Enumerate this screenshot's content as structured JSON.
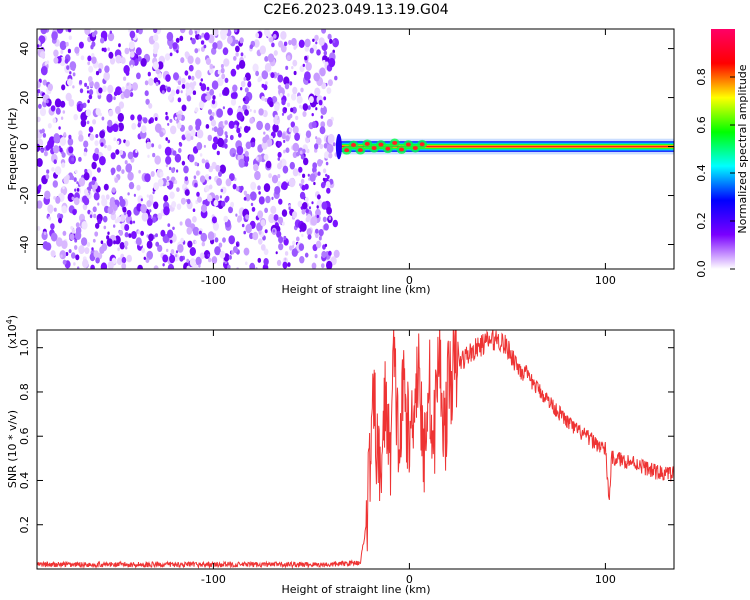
{
  "page_title": "C2E6.2023.049.13.19.G04",
  "chart_data": [
    {
      "type": "heatmap",
      "xlabel": "Height of straight line (km)",
      "ylabel": "Frequency (Hz)",
      "xlim": [
        -190,
        135
      ],
      "ylim": [
        -50,
        48
      ],
      "xticks": [
        -100,
        0,
        100
      ],
      "yticks": [
        -40,
        -20,
        0,
        20,
        40
      ],
      "grid": false,
      "noise_region_x": [
        -190,
        -37
      ],
      "signal_band": {
        "x": [
          -37,
          135
        ],
        "frequency_center": 0,
        "frequency_halfwidth": 2
      },
      "colorbar": {
        "label": "Normalized spectral amplitude",
        "range": [
          0,
          1
        ],
        "ticks": [
          0.0,
          0.2,
          0.4,
          0.6,
          0.8
        ],
        "colors": [
          "#ffffff",
          "#7a00ff",
          "#0000ff",
          "#00ffff",
          "#00ff00",
          "#ffff00",
          "#ff0000",
          "#ff0066"
        ]
      }
    },
    {
      "type": "line",
      "xlabel": "Height of straight line (km)",
      "ylabel": "SNR (10 * v/v)",
      "y_multiplier": "(x10",
      "y_multiplier_exp": "4",
      "y_multiplier_close": ")",
      "xlim": [
        -190,
        135
      ],
      "ylim": [
        0,
        1.08
      ],
      "xticks": [
        -100,
        0,
        100
      ],
      "yticks": [
        0.2,
        0.4,
        0.6,
        0.8,
        1.0
      ],
      "grid": false,
      "series": [
        {
          "color": "#ee3333",
          "x": [
            -190,
            -160,
            -130,
            -100,
            -70,
            -40,
            -25,
            -22,
            -20,
            -18,
            -17,
            -15,
            -12,
            -10,
            -8,
            -5,
            -3,
            0,
            2,
            5,
            7,
            10,
            12,
            15,
            18,
            20,
            25,
            30,
            35,
            40,
            45,
            48,
            52,
            55,
            60,
            65,
            70,
            75,
            80,
            85,
            90,
            95,
            100,
            102,
            103,
            105,
            110,
            115,
            120,
            125,
            130,
            135
          ],
          "y": [
            0.02,
            0.02,
            0.02,
            0.02,
            0.02,
            0.02,
            0.03,
            0.2,
            0.5,
            0.75,
            0.6,
            0.4,
            0.8,
            0.45,
            0.95,
            0.5,
            0.85,
            0.55,
            0.75,
            0.95,
            0.45,
            0.9,
            0.5,
            1.0,
            0.6,
            0.85,
            0.93,
            0.97,
            1.0,
            1.03,
            1.04,
            1.02,
            0.97,
            0.92,
            0.87,
            0.82,
            0.77,
            0.72,
            0.67,
            0.63,
            0.6,
            0.57,
            0.54,
            0.3,
            0.5,
            0.5,
            0.49,
            0.48,
            0.46,
            0.44,
            0.43,
            0.43
          ]
        }
      ]
    }
  ]
}
